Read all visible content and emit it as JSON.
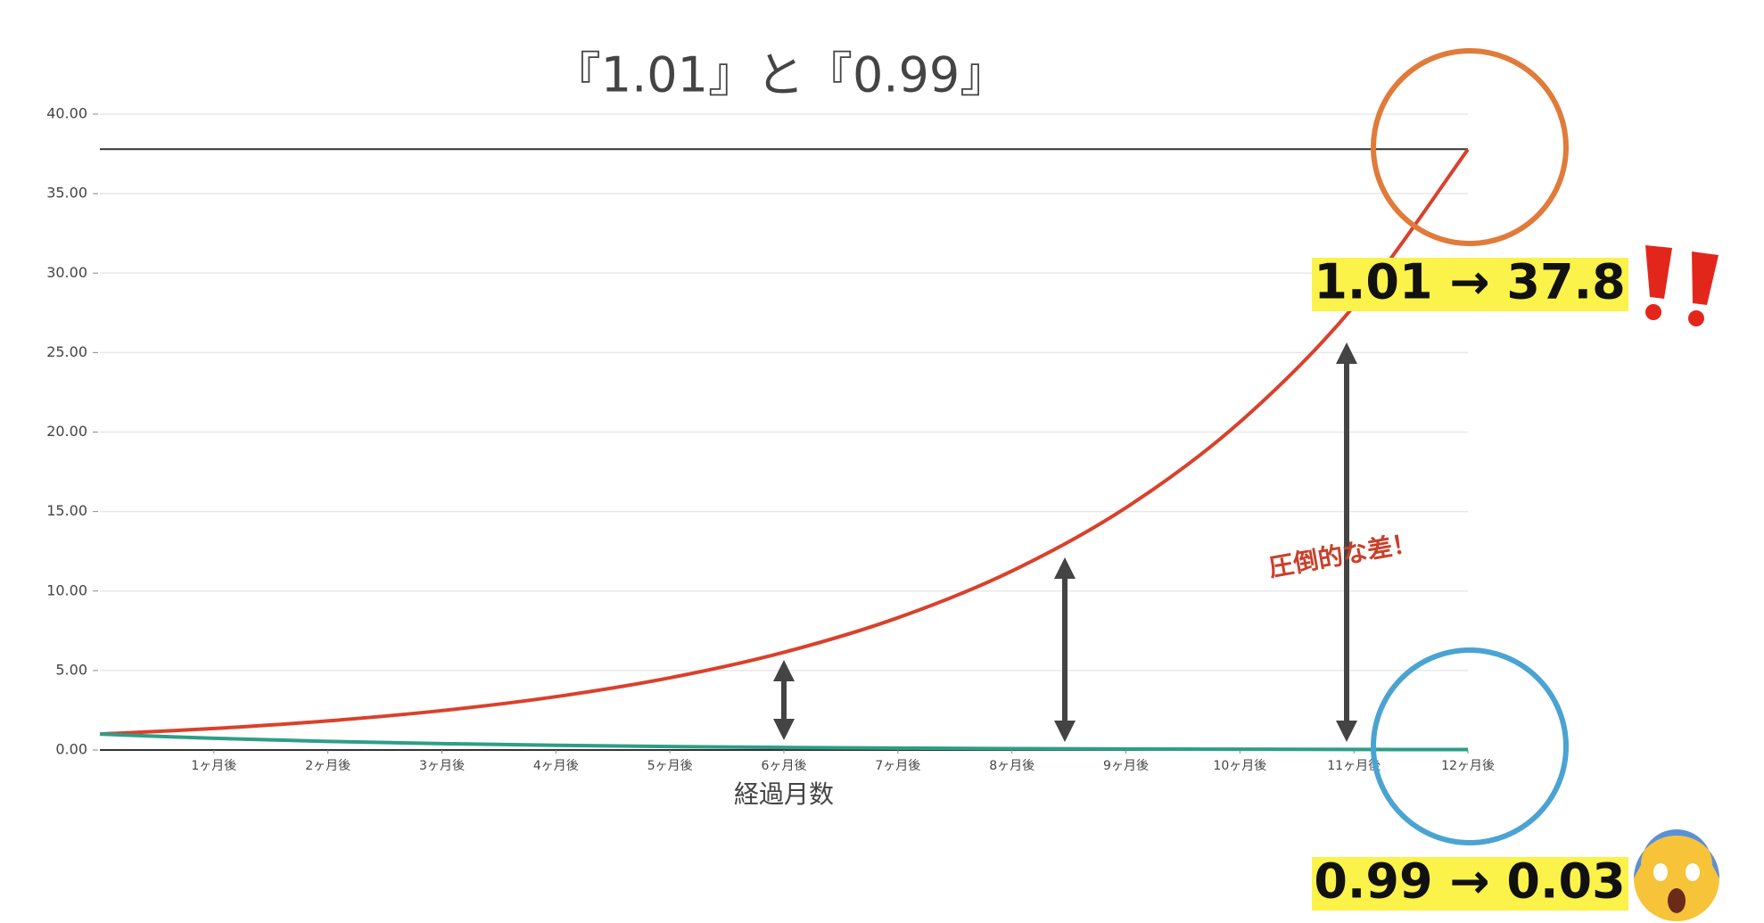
{
  "chart_data": {
    "type": "line",
    "title": "『1.01』と『0.99』",
    "x_label": "経過月数",
    "x": [
      0,
      1,
      2,
      3,
      4,
      5,
      6,
      7,
      8,
      9,
      10,
      11,
      12
    ],
    "series": [
      {
        "name": "1.01",
        "color": "#d9412b",
        "values": [
          1,
          1.354,
          1.832,
          2.479,
          3.356,
          4.542,
          6.147,
          8.32,
          11.26,
          15.24,
          20.63,
          27.92,
          37.78
        ]
      },
      {
        "name": "0.99",
        "color": "#2e9e86",
        "values": [
          1,
          0.737,
          0.543,
          0.4,
          0.294,
          0.217,
          0.16,
          0.118,
          0.087,
          0.064,
          0.047,
          0.035,
          0.026
        ]
      }
    ],
    "xlim": [
      0,
      12
    ],
    "xticks": [
      {
        "value": 1,
        "label": "1ヶ月後"
      },
      {
        "value": 2,
        "label": "2ヶ月後"
      },
      {
        "value": 3,
        "label": "3ヶ月後"
      },
      {
        "value": 4,
        "label": "4ヶ月後"
      },
      {
        "value": 5,
        "label": "5ヶ月後"
      },
      {
        "value": 6,
        "label": "6ヶ月後"
      },
      {
        "value": 7,
        "label": "7ヶ月後"
      },
      {
        "value": 8,
        "label": "8ヶ月後"
      },
      {
        "value": 9,
        "label": "9ヶ月後"
      },
      {
        "value": 10,
        "label": "10ヶ月後"
      },
      {
        "value": 11,
        "label": "11ヶ月後"
      },
      {
        "value": 12,
        "label": "12ヶ月後"
      }
    ],
    "ylim": [
      0,
      40
    ],
    "yticks": [
      {
        "value": 0,
        "label": "0.00"
      },
      {
        "value": 5,
        "label": "5.00"
      },
      {
        "value": 10,
        "label": "10.00"
      },
      {
        "value": 15,
        "label": "15.00"
      },
      {
        "value": 20,
        "label": "20.00"
      },
      {
        "value": 25,
        "label": "25.00"
      },
      {
        "value": 30,
        "label": "30.00"
      },
      {
        "value": 35,
        "label": "35.00"
      },
      {
        "value": 40,
        "label": "40.00"
      }
    ],
    "grid": true,
    "reference_line": 37.8,
    "annotations": {
      "high": "1.01 → 37.8",
      "low": "0.99 → 0.03",
      "gap": "圧倒的な差！"
    }
  }
}
